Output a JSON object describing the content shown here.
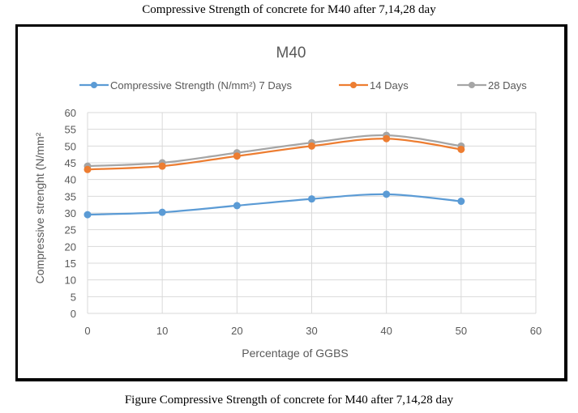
{
  "captions": {
    "top": "Compressive Strength of concrete  for M40 after 7,14,28 day",
    "bottom": "Figure Compressive Strength of concrete  for M40 after 7,14,28 day"
  },
  "chart_data": {
    "type": "line",
    "title": "M40",
    "xlabel": "Percentage of GGBS",
    "ylabel": "Compressive strenght (N/mm²",
    "xlim": [
      0,
      60
    ],
    "ylim": [
      0,
      60
    ],
    "xticks": [
      0,
      10,
      20,
      30,
      40,
      50,
      60
    ],
    "yticks": [
      0,
      5,
      10,
      15,
      20,
      25,
      30,
      35,
      40,
      45,
      50,
      55,
      60
    ],
    "grid": true,
    "legend_position": "top",
    "smooth": true,
    "series": [
      {
        "name": "Compressive Strength (N/mm²) 7 Days",
        "color": "#5b9bd5",
        "x": [
          0,
          10,
          20,
          30,
          40,
          50
        ],
        "y": [
          29.5,
          30.2,
          32.2,
          34.2,
          35.6,
          33.5
        ]
      },
      {
        "name": "14 Days",
        "color": "#ed7d31",
        "x": [
          0,
          10,
          20,
          30,
          40,
          50
        ],
        "y": [
          43,
          44,
          47,
          50,
          52.2,
          49
        ]
      },
      {
        "name": "28 Days",
        "color": "#a5a5a5",
        "x": [
          0,
          10,
          20,
          30,
          40,
          50
        ],
        "y": [
          44,
          45,
          48,
          51,
          53.2,
          50
        ]
      }
    ]
  }
}
